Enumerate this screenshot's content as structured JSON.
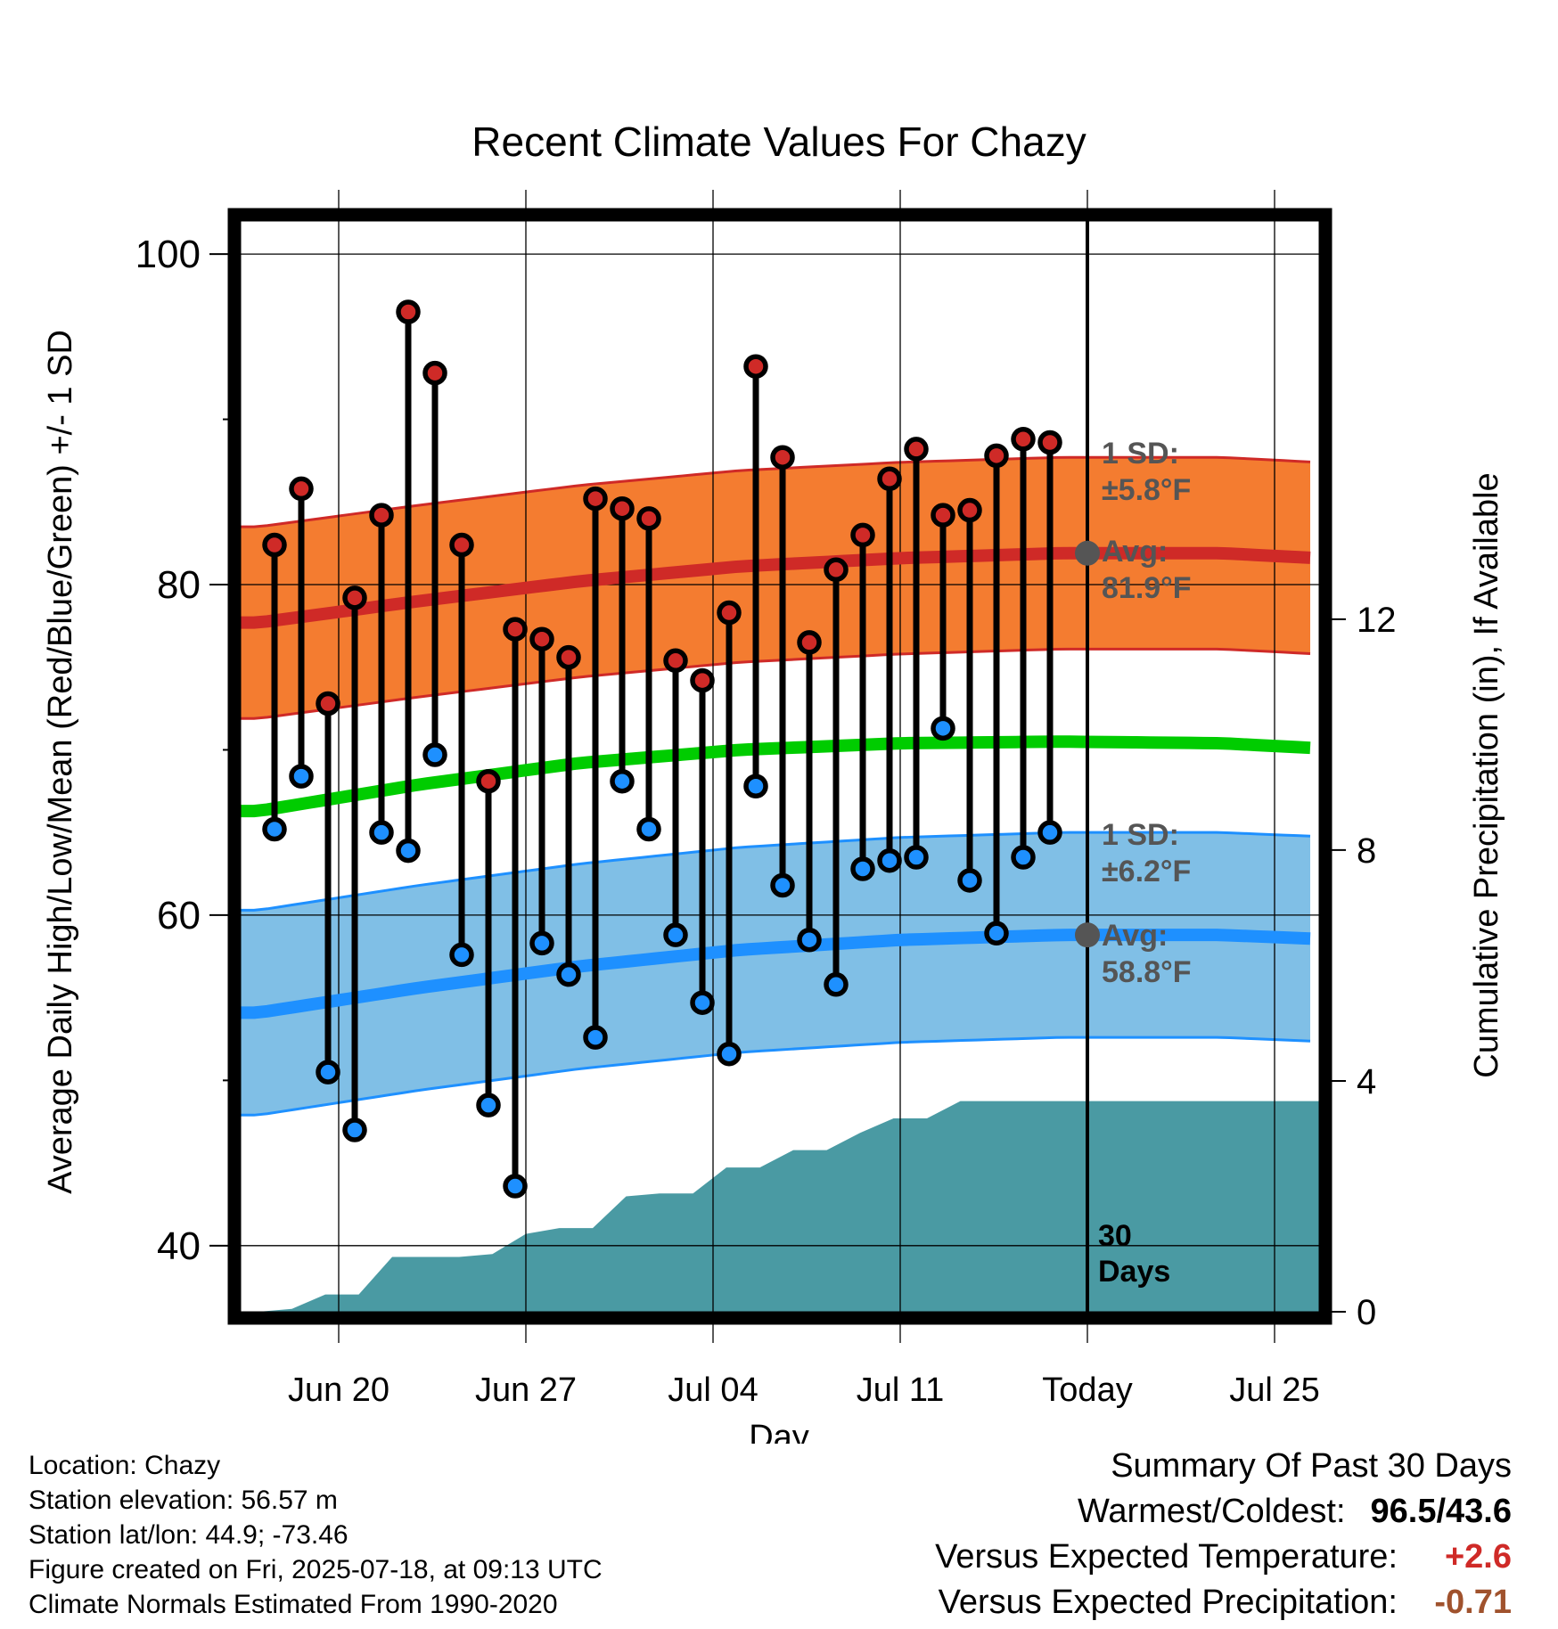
{
  "chart_data": {
    "type": "line",
    "title": "Recent Climate Values For Chazy",
    "xlabel": "Day",
    "ylabel": "Average Daily High/Low/Mean (Red/Blue/Green) +/- 1 SD",
    "y2label": "Cumulative Precipitation (in), If Available",
    "x_ticks": [
      "Jun 20",
      "Jun 27",
      "Jul 04",
      "Jul 11",
      "Today",
      "Jul 25"
    ],
    "ylim": [
      36,
      102
    ],
    "y_ticks": [
      40,
      60,
      80,
      100
    ],
    "y2lim": [
      0,
      18.9
    ],
    "y2_ticks": [
      0,
      4,
      8,
      12
    ],
    "grid": true,
    "highs": [
      82.4,
      85.8,
      72.8,
      79.2,
      84.2,
      96.5,
      92.8,
      82.4,
      68.1,
      77.3,
      76.7,
      75.6,
      85.2,
      84.6,
      84.0,
      75.4,
      74.2,
      78.3,
      93.2,
      87.7,
      76.5,
      80.9,
      83.0,
      86.4,
      88.2,
      84.2,
      84.5,
      87.8,
      88.8,
      88.6
    ],
    "lows": [
      65.2,
      68.4,
      50.5,
      47.0,
      65.0,
      63.9,
      69.7,
      57.6,
      48.5,
      43.6,
      58.3,
      56.4,
      52.6,
      68.1,
      65.2,
      58.8,
      54.7,
      51.6,
      67.8,
      61.8,
      58.5,
      55.8,
      62.8,
      63.3,
      63.5,
      71.3,
      62.1,
      58.9,
      63.5,
      65.0
    ],
    "normal_high": [
      77.7,
      79.0,
      80.2,
      81.1,
      81.6,
      81.9,
      81.9,
      81.4
    ],
    "normal_low": [
      54.1,
      55.6,
      56.9,
      57.9,
      58.5,
      58.8,
      58.8,
      58.4
    ],
    "normal_mean": [
      66.3,
      67.9,
      69.2,
      70.0,
      70.4,
      70.5,
      70.4,
      69.9
    ],
    "high_sd": 5.8,
    "low_sd": 6.2,
    "precip_cumulative": [
      0.0,
      0.05,
      0.3,
      0.3,
      0.95,
      0.95,
      0.95,
      1.0,
      1.35,
      1.45,
      1.45,
      2.0,
      2.05,
      2.05,
      2.5,
      2.5,
      2.8,
      2.8,
      3.1,
      3.35,
      3.35,
      3.65,
      3.65,
      3.65
    ],
    "annotations": {
      "high_sd": "1 SD:",
      "high_sd_value": "±5.8°F",
      "high_avg": "Avg:",
      "high_avg_value": "81.9°F",
      "low_sd": "1 SD:",
      "low_sd_value": "±6.2°F",
      "low_avg": "Avg:",
      "low_avg_value": "58.8°F",
      "days_number": "30",
      "days_word": "Days"
    },
    "colors": {
      "high_band": "#f47c30",
      "high_line": "#cf2a27",
      "low_band": "#80bfe6",
      "low_line": "#1e90ff",
      "mean_line": "#00cc00",
      "precip": "#4a9aa3",
      "high_marker": "#cf2a27",
      "low_marker": "#1e90ff",
      "annotation": "#555555"
    }
  },
  "footer": {
    "location": "Location: Chazy",
    "elevation": "Station elevation: 56.57 m",
    "latlon": "Station lat/lon: 44.9; -73.46",
    "created": "Figure created on Fri, 2025-07-18, at 09:13 UTC",
    "normals": "Climate Normals Estimated From 1990-2020"
  },
  "summary": {
    "title": "Summary Of Past 30 Days",
    "warmest_label": "Warmest/Coldest:",
    "warmest_value": "96.5/43.6",
    "temp_label": "Versus Expected Temperature:",
    "temp_value": "+2.6",
    "temp_color": "#cf2a27",
    "precip_label": "Versus Expected Precipitation:",
    "precip_value": "-0.71",
    "precip_color": "#a0522d"
  }
}
